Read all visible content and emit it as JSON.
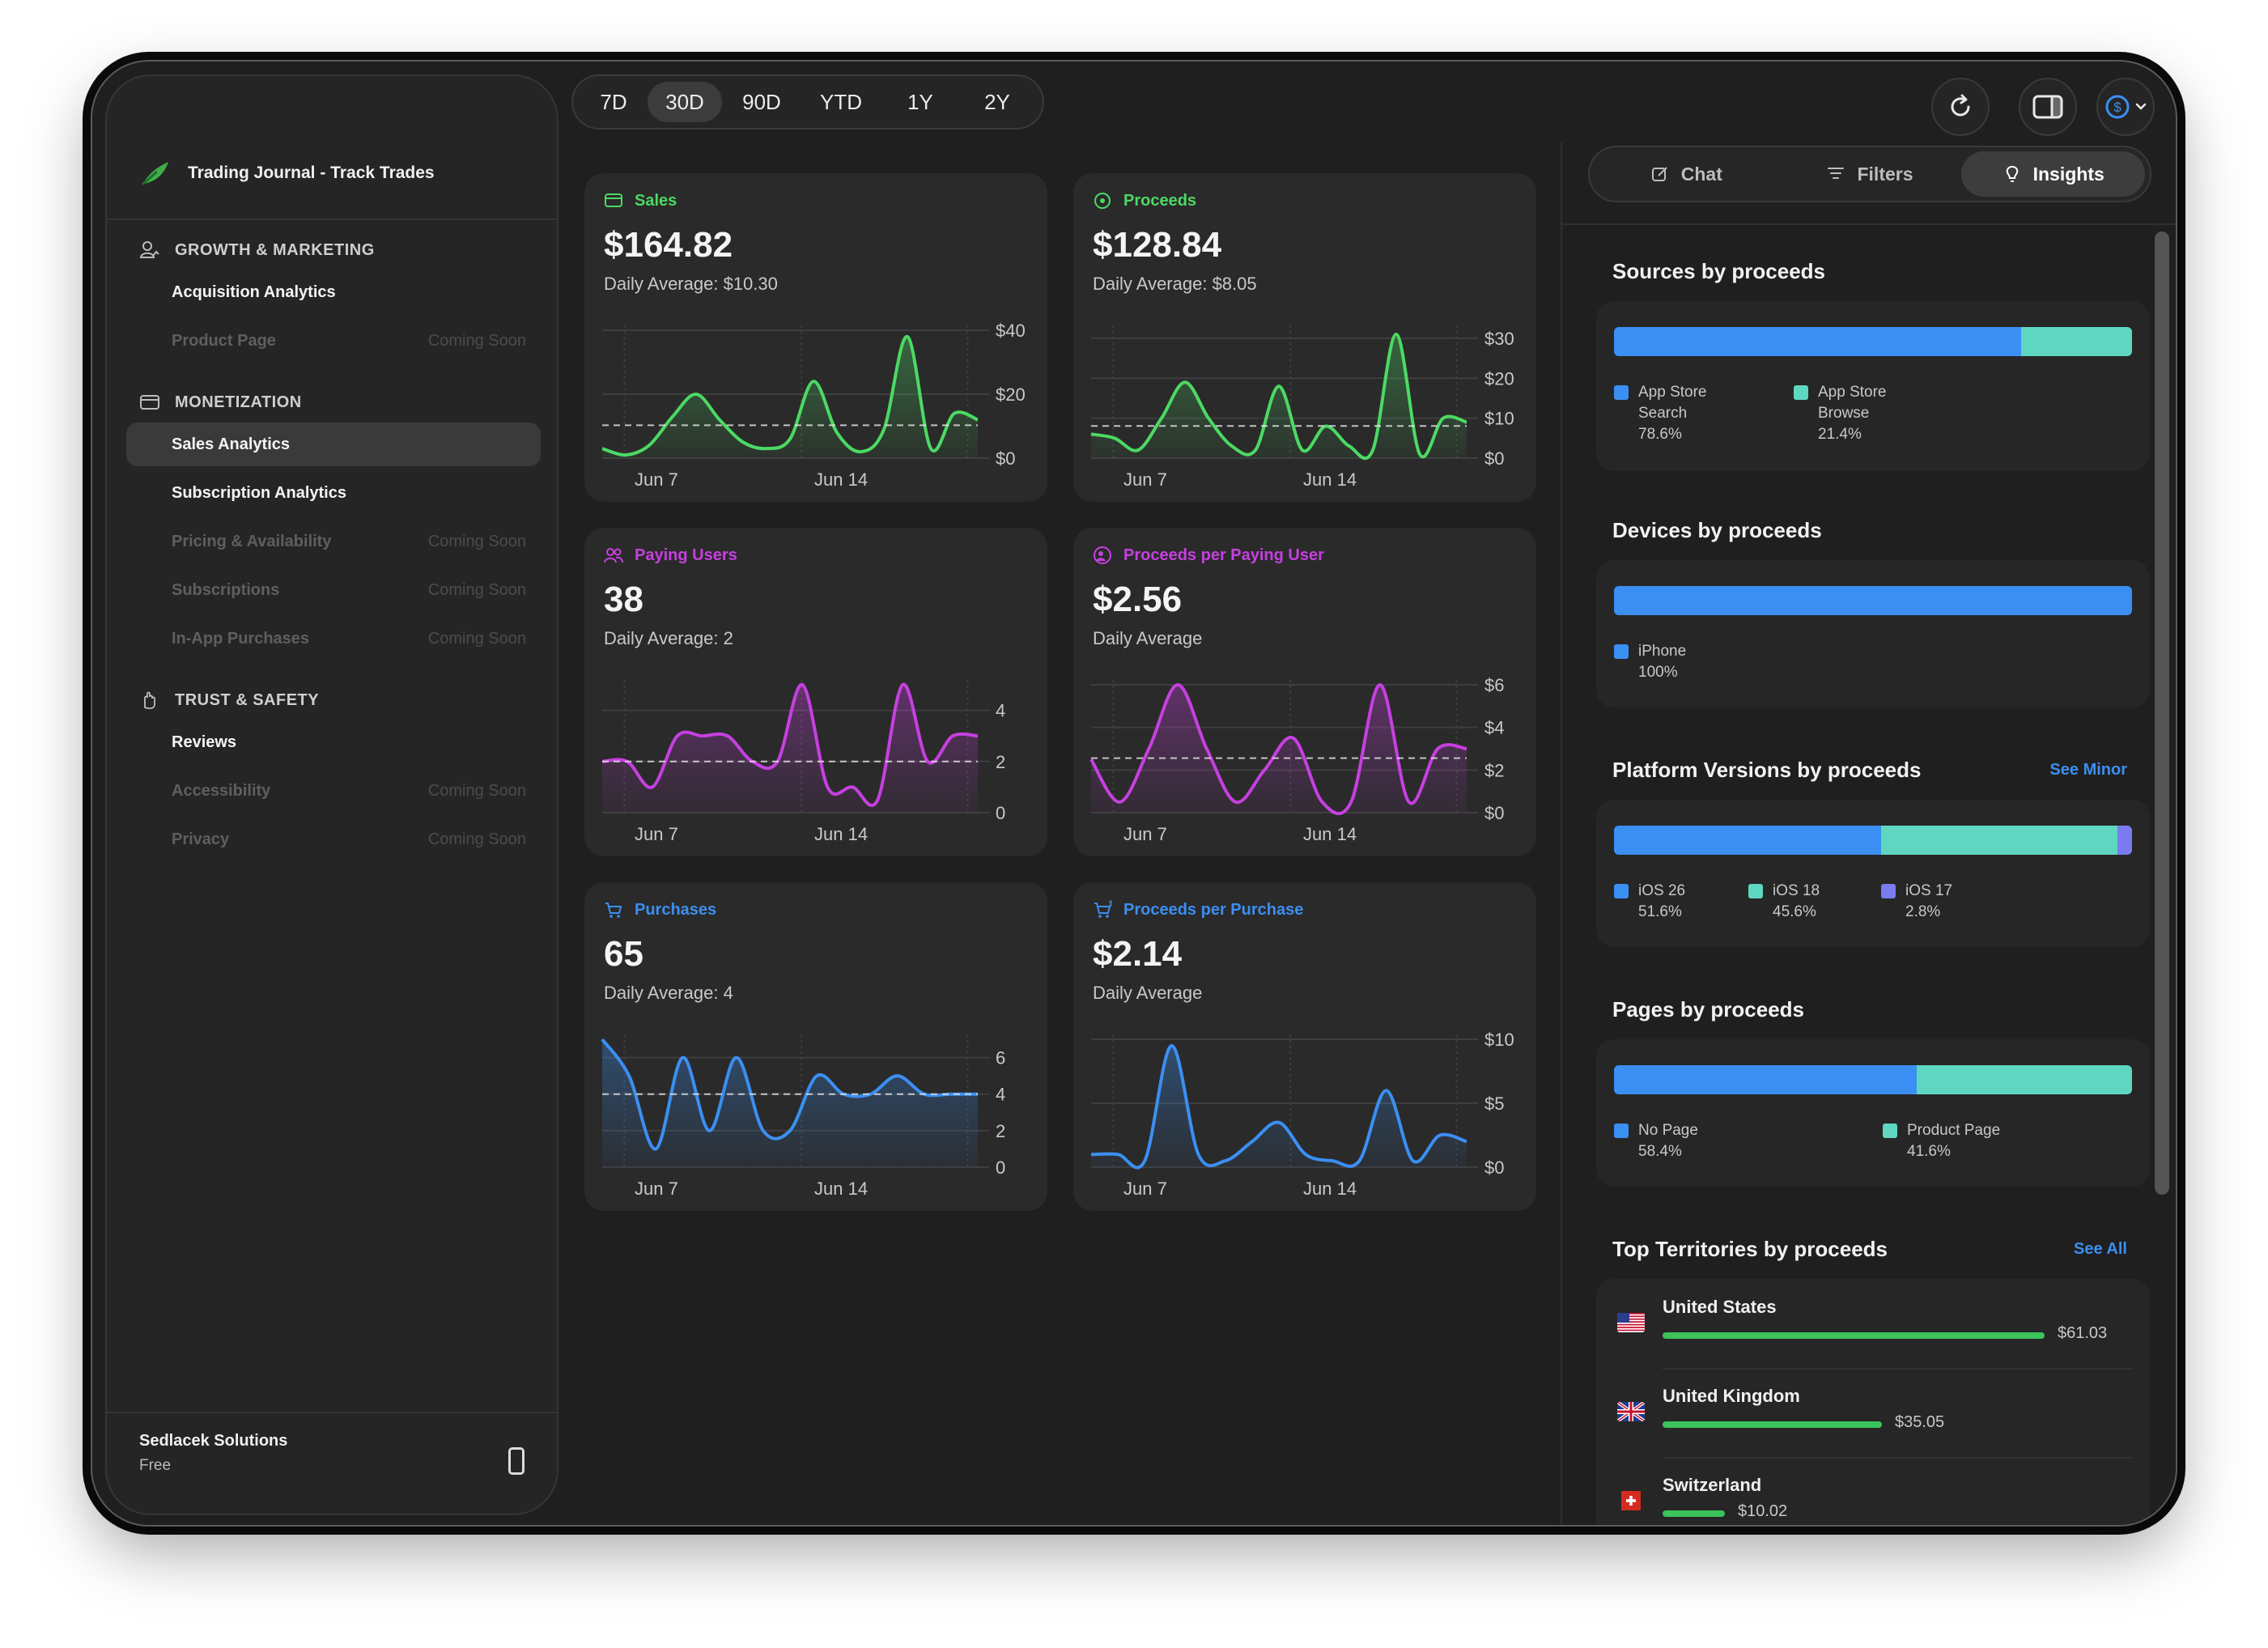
{
  "window": {
    "traffic_lights": {
      "close": "#fe5f57",
      "minimize": "#febc2e",
      "zoom": "#28c840"
    }
  },
  "sidebar": {
    "app_title": "Trading Journal - Track Trades",
    "sections": [
      {
        "title": "GROWTH & MARKETING",
        "icon": "person-chart-icon",
        "items": [
          {
            "label": "Acquisition Analytics",
            "state": "enabled"
          },
          {
            "label": "Product Page",
            "state": "disabled",
            "badge": "Coming Soon"
          }
        ]
      },
      {
        "title": "MONETIZATION",
        "icon": "credit-card-icon",
        "items": [
          {
            "label": "Sales Analytics",
            "state": "active"
          },
          {
            "label": "Subscription Analytics",
            "state": "enabled"
          },
          {
            "label": "Pricing & Availability",
            "state": "disabled",
            "badge": "Coming Soon"
          },
          {
            "label": "Subscriptions",
            "state": "disabled",
            "badge": "Coming Soon"
          },
          {
            "label": "In-App Purchases",
            "state": "disabled",
            "badge": "Coming Soon"
          }
        ]
      },
      {
        "title": "TRUST & SAFETY",
        "icon": "hand-icon",
        "items": [
          {
            "label": "Reviews",
            "state": "enabled"
          },
          {
            "label": "Accessibility",
            "state": "disabled",
            "badge": "Coming Soon"
          },
          {
            "label": "Privacy",
            "state": "disabled",
            "badge": "Coming Soon"
          }
        ]
      }
    ],
    "footer": {
      "org": "Sedlacek Solutions",
      "plan": "Free"
    }
  },
  "periods": {
    "options": [
      "7D",
      "30D",
      "90D",
      "YTD",
      "1Y",
      "2Y"
    ],
    "selected": "30D"
  },
  "toolbar": {
    "refresh_icon": "refresh-icon",
    "sidebar_icon": "sidebar-right-icon",
    "currency_icon": "dollar-circle-icon"
  },
  "cards": [
    {
      "label": "Sales",
      "value": "$164.82",
      "sub": "Daily Average: $10.30",
      "color": "#4cd964",
      "icon": "card-icon",
      "chart_data": {
        "type": "area",
        "x_ticks": [
          "Jun 7",
          "Jun 14"
        ],
        "y_ticks": [
          "$40",
          "$20",
          "$0"
        ],
        "ylim": [
          0,
          40
        ],
        "average": 10.3,
        "values": [
          3,
          1,
          4,
          13,
          20,
          12,
          5,
          3,
          6,
          24,
          8,
          2,
          9,
          38,
          3,
          14,
          12
        ]
      }
    },
    {
      "label": "Proceeds",
      "value": "$128.84",
      "sub": "Daily Average: $8.05",
      "color": "#4cd964",
      "icon": "coin-icon",
      "chart_data": {
        "type": "area",
        "x_ticks": [
          "Jun 7",
          "Jun 14"
        ],
        "y_ticks": [
          "$30",
          "$20",
          "$10",
          "$0"
        ],
        "ylim": [
          0,
          32
        ],
        "average": 8.05,
        "values": [
          6,
          5,
          2,
          10,
          19,
          10,
          3,
          2,
          18,
          2,
          8,
          3,
          2,
          31,
          1,
          10,
          9
        ]
      }
    },
    {
      "label": "Paying Users",
      "value": "38",
      "sub": "Daily Average: 2",
      "color": "#c640e0",
      "icon": "people-icon",
      "chart_data": {
        "type": "area",
        "x_ticks": [
          "Jun 7",
          "Jun 14"
        ],
        "y_ticks": [
          "4",
          "2",
          "0"
        ],
        "ylim": [
          0,
          5
        ],
        "average": 2,
        "values": [
          2,
          2,
          1,
          3,
          3,
          3,
          2,
          2,
          5,
          1,
          1,
          0.5,
          5,
          2,
          3,
          3
        ]
      }
    },
    {
      "label": "Proceeds per Paying User",
      "value": "$2.56",
      "sub": "Daily Average",
      "color": "#c640e0",
      "icon": "person-dollar-icon",
      "chart_data": {
        "type": "area",
        "x_ticks": [
          "Jun 7",
          "Jun 14"
        ],
        "y_ticks": [
          "$6",
          "$4",
          "$2",
          "$0"
        ],
        "ylim": [
          0,
          6
        ],
        "average": 2.56,
        "values": [
          2.5,
          0.5,
          3,
          6,
          3,
          0.5,
          2,
          3.5,
          0.5,
          0.5,
          6,
          0.5,
          3,
          3
        ]
      }
    },
    {
      "label": "Purchases",
      "value": "65",
      "sub": "Daily Average: 4",
      "color": "#3b8ff2",
      "icon": "cart-icon",
      "chart_data": {
        "type": "area",
        "x_ticks": [
          "Jun 7",
          "Jun 14"
        ],
        "y_ticks": [
          "6",
          "4",
          "2",
          "0"
        ],
        "ylim": [
          0,
          7
        ],
        "average": 4,
        "values": [
          7,
          5,
          1,
          6,
          2,
          6,
          2,
          2,
          5,
          4,
          4,
          5,
          4,
          4,
          4
        ]
      }
    },
    {
      "label": "Proceeds per Purchase",
      "value": "$2.14",
      "sub": "Daily Average",
      "color": "#3b8ff2",
      "icon": "cart-dollar-icon",
      "chart_data": {
        "type": "area",
        "x_ticks": [
          "Jun 7",
          "Jun 14"
        ],
        "y_ticks": [
          "$10",
          "$5",
          "$0"
        ],
        "ylim": [
          0,
          10
        ],
        "average": null,
        "values": [
          1,
          1,
          0.5,
          9.5,
          1,
          0.5,
          2,
          3.5,
          1,
          0.5,
          0.5,
          6,
          0.5,
          2.5,
          2
        ]
      }
    }
  ],
  "right_panel": {
    "tabs": [
      {
        "label": "Chat",
        "icon": "compose-icon",
        "active": false
      },
      {
        "label": "Filters",
        "icon": "filter-icon",
        "active": false
      },
      {
        "label": "Insights",
        "icon": "lightbulb-icon",
        "active": true
      }
    ],
    "sources": {
      "title": "Sources by proceeds",
      "segments": [
        {
          "label1": "App Store",
          "label2": "Search",
          "pct": "78.6%",
          "value": 78.6,
          "color": "#3b8ff2"
        },
        {
          "label1": "App Store",
          "label2": "Browse",
          "pct": "21.4%",
          "value": 21.4,
          "color": "#5fd6c0"
        }
      ]
    },
    "devices": {
      "title": "Devices by proceeds",
      "segments": [
        {
          "label": "iPhone",
          "pct": "100%",
          "value": 100,
          "color": "#3b8ff2"
        }
      ]
    },
    "platforms": {
      "title": "Platform Versions by proceeds",
      "link": "See Minor",
      "segments": [
        {
          "label": "iOS 26",
          "pct": "51.6%",
          "value": 51.6,
          "color": "#3b8ff2"
        },
        {
          "label": "iOS 18",
          "pct": "45.6%",
          "value": 45.6,
          "color": "#5fd6c0"
        },
        {
          "label": "iOS 17",
          "pct": "2.8%",
          "value": 2.8,
          "color": "#7b7bf0"
        }
      ]
    },
    "pages": {
      "title": "Pages by proceeds",
      "segments": [
        {
          "label": "No Page",
          "pct": "58.4%",
          "value": 58.4,
          "color": "#3b8ff2"
        },
        {
          "label": "Product Page",
          "pct": "41.6%",
          "value": 41.6,
          "color": "#5fd6c0"
        }
      ]
    },
    "territories": {
      "title": "Top Territories by proceeds",
      "link": "See All",
      "rows": [
        {
          "name": "United States",
          "amount": "$61.03",
          "value": 61.03,
          "flag": "us-flag-icon"
        },
        {
          "name": "United Kingdom",
          "amount": "$35.05",
          "value": 35.05,
          "flag": "uk-flag-icon"
        },
        {
          "name": "Switzerland",
          "amount": "$10.02",
          "value": 10.02,
          "flag": "ch-flag-icon"
        }
      ]
    }
  }
}
